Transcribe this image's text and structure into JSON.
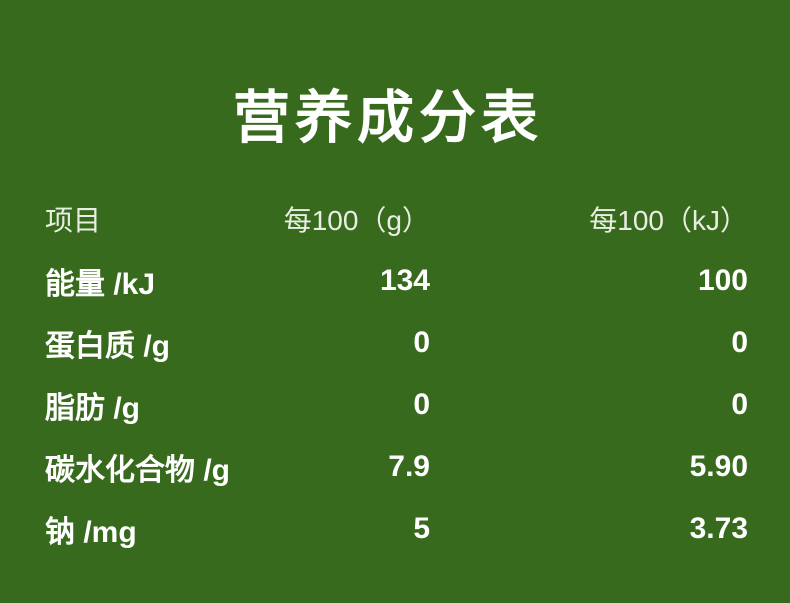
{
  "page": {
    "title": "营养成分表",
    "background_color": "#376a1d",
    "text_color": "#ffffff",
    "header_text_color": "#e8eee2"
  },
  "table": {
    "columns": [
      {
        "label": "项目"
      },
      {
        "label": "每100（g）"
      },
      {
        "label": "每100（kJ）"
      }
    ],
    "rows": [
      {
        "item": "能量 /kJ",
        "per_100_g": "134",
        "per_100_kj": "100"
      },
      {
        "item": "蛋白质 /g",
        "per_100_g": "0",
        "per_100_kj": "0"
      },
      {
        "item": "脂肪 /g",
        "per_100_g": "0",
        "per_100_kj": "0"
      },
      {
        "item": "碳水化合物 /g",
        "per_100_g": "7.9",
        "per_100_kj": "5.90"
      },
      {
        "item": "钠 /mg",
        "per_100_g": "5",
        "per_100_kj": "3.73"
      }
    ]
  }
}
